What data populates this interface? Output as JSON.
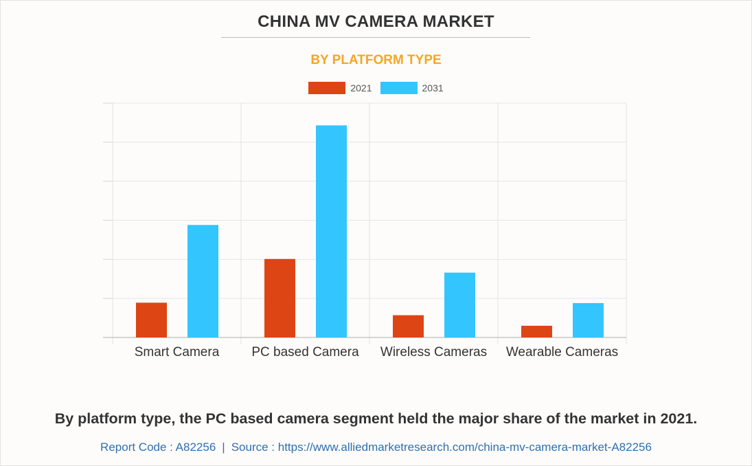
{
  "header": {
    "title": "CHINA MV CAMERA MARKET",
    "subtitle": "BY PLATFORM TYPE",
    "subtitle_color": "#f5a623"
  },
  "chart_data": {
    "type": "bar",
    "categories": [
      "Smart Camera",
      "PC based Camera",
      "Wireless Cameras",
      "Wearable Cameras"
    ],
    "series": [
      {
        "name": "2021",
        "color": "#dd4515",
        "values": [
          8.9,
          20.1,
          5.7,
          3.0
        ]
      },
      {
        "name": "2031",
        "color": "#33c5fd",
        "values": [
          28.8,
          54.3,
          16.6,
          8.8
        ]
      }
    ],
    "ylim": [
      0,
      60
    ],
    "gridlines": [
      0,
      10,
      20,
      30,
      40,
      50,
      60
    ],
    "y_tick_labels_shown": false,
    "grid": true,
    "legend": "top-center",
    "xlabel": "",
    "ylabel": ""
  },
  "caption": "By platform type, the PC based camera segment held the major share of the market in 2021.",
  "footer": {
    "report_code": "Report Code : A82256",
    "separator": "|",
    "source": "Source : https://www.alliedmarketresearch.com/china-mv-camera-market-A82256"
  }
}
